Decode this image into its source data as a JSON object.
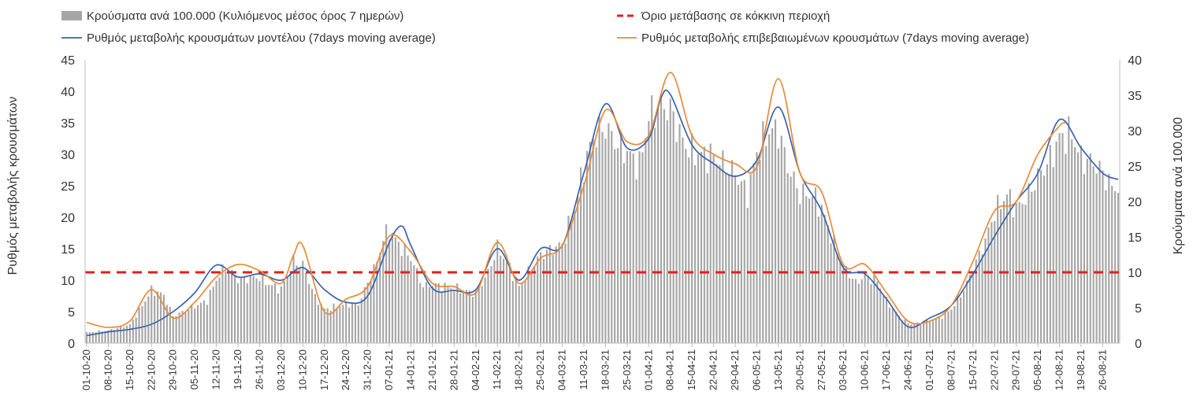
{
  "chart_data": {
    "type": "bar",
    "legend": {
      "placement": "top",
      "items": [
        {
          "label": "Κρούσματα ανά 100.000 (Κυλιόμενος μέσος όρος 7 ημερών)",
          "kind": "bar",
          "color": "#a6a6a6"
        },
        {
          "label": "Όριο μετάβασης σε κόκκινη περιοχή",
          "kind": "dashed",
          "color": "#e02020"
        },
        {
          "label": "Ρυθμός μεταβολής κρουσμάτων μοντέλου (7days moving average)",
          "kind": "line",
          "color": "#3a63b0"
        },
        {
          "label": "Ρυθμός μεταβολής επιβεβαιωμένων κρουσμάτων (7days moving average)",
          "kind": "line",
          "color": "#ea8a35"
        }
      ]
    },
    "ylabel_left": "Ρυθμός μεταβολής κρουσμάτων",
    "ylabel_right": "Κρούσματα ανά 100.000",
    "ylim_left": [
      0,
      45
    ],
    "ylim_right": [
      0,
      40
    ],
    "yticks_left": [
      "0",
      "5",
      "10",
      "15",
      "20",
      "25",
      "30",
      "35",
      "40",
      "45"
    ],
    "yticks_right": [
      "0",
      "5",
      "10",
      "15",
      "20",
      "25",
      "30",
      "35",
      "40"
    ],
    "x_start_date": "2020-10-01",
    "x_end_date": "2021-08-31",
    "xticks": [
      "01-10-20",
      "08-10-20",
      "15-10-20",
      "22-10-20",
      "29-10-20",
      "05-11-20",
      "12-11-20",
      "19-11-20",
      "26-11-20",
      "03-12-20",
      "10-12-20",
      "17-12-20",
      "24-12-20",
      "31-12-20",
      "07-01-21",
      "14-01-21",
      "21-01-21",
      "28-01-21",
      "04-02-21",
      "11-02-21",
      "18-02-21",
      "25-02-21",
      "04-03-21",
      "11-03-21",
      "18-03-21",
      "25-03-21",
      "01-04-21",
      "08-04-21",
      "15-04-21",
      "22-04-21",
      "29-04-21",
      "06-05-21",
      "13-05-21",
      "20-05-21",
      "27-05-21",
      "03-06-21",
      "10-06-21",
      "17-06-21",
      "24-06-21",
      "01-07-21",
      "08-07-21",
      "15-07-21",
      "22-07-21",
      "29-07-21",
      "05-08-21",
      "12-08-21",
      "19-08-21",
      "26-08-21"
    ],
    "threshold": {
      "axis": "right",
      "value": 10,
      "color": "#e02020"
    },
    "grid": false,
    "series": [
      {
        "name": "Κρούσματα ανά 100.000 (Κυλιόμενος μέσος όρος 7 ημερών)",
        "axis": "right",
        "type": "bar",
        "color": "#a6a6a6",
        "x_unit": "date",
        "points": [
          [
            "2020-10-01",
            1.5
          ],
          [
            "2020-10-08",
            1.8
          ],
          [
            "2020-10-15",
            2.6
          ],
          [
            "2020-10-20",
            6.0
          ],
          [
            "2020-10-22",
            7.5
          ],
          [
            "2020-10-26",
            6.8
          ],
          [
            "2020-10-29",
            3.8
          ],
          [
            "2020-11-05",
            5.2
          ],
          [
            "2020-11-09",
            6.0
          ],
          [
            "2020-11-12",
            9.0
          ],
          [
            "2020-11-15",
            10.8
          ],
          [
            "2020-11-19",
            9.0
          ],
          [
            "2020-11-26",
            9.3
          ],
          [
            "2020-11-29",
            8.3
          ],
          [
            "2020-12-03",
            7.6
          ],
          [
            "2020-12-07",
            11.5
          ],
          [
            "2020-12-10",
            11.0
          ],
          [
            "2020-12-14",
            6.5
          ],
          [
            "2020-12-17",
            4.8
          ],
          [
            "2020-12-24",
            5.5
          ],
          [
            "2020-12-28",
            5.5
          ],
          [
            "2021-01-03",
            11.5
          ],
          [
            "2021-01-05",
            14.8
          ],
          [
            "2021-01-07",
            16.0
          ],
          [
            "2021-01-10",
            14.0
          ],
          [
            "2021-01-14",
            12.0
          ],
          [
            "2021-01-18",
            8.0
          ],
          [
            "2021-01-21",
            8.3
          ],
          [
            "2021-01-28",
            7.8
          ],
          [
            "2021-02-04",
            7.0
          ],
          [
            "2021-02-08",
            10.0
          ],
          [
            "2021-02-11",
            13.5
          ],
          [
            "2021-02-14",
            11.5
          ],
          [
            "2021-02-18",
            8.0
          ],
          [
            "2021-02-25",
            12.5
          ],
          [
            "2021-03-04",
            14.0
          ],
          [
            "2021-03-08",
            19.0
          ],
          [
            "2021-03-11",
            25.0
          ],
          [
            "2021-03-14",
            29.0
          ],
          [
            "2021-03-18",
            30.5
          ],
          [
            "2021-03-22",
            28.0
          ],
          [
            "2021-03-25",
            27.0
          ],
          [
            "2021-03-29",
            25.0
          ],
          [
            "2021-04-01",
            32.0
          ],
          [
            "2021-04-05",
            33.5
          ],
          [
            "2021-04-08",
            33.0
          ],
          [
            "2021-04-12",
            28.5
          ],
          [
            "2021-04-15",
            27.0
          ],
          [
            "2021-04-19",
            26.5
          ],
          [
            "2021-04-22",
            26.5
          ],
          [
            "2021-04-26",
            25.0
          ],
          [
            "2021-04-29",
            24.0
          ],
          [
            "2021-05-03",
            21.0
          ],
          [
            "2021-05-06",
            27.0
          ],
          [
            "2021-05-10",
            30.0
          ],
          [
            "2021-05-13",
            30.0
          ],
          [
            "2021-05-16",
            25.0
          ],
          [
            "2021-05-20",
            21.0
          ],
          [
            "2021-05-24",
            21.0
          ],
          [
            "2021-05-27",
            19.0
          ],
          [
            "2021-05-31",
            14.0
          ],
          [
            "2021-06-03",
            11.0
          ],
          [
            "2021-06-07",
            8.5
          ],
          [
            "2021-06-10",
            9.5
          ],
          [
            "2021-06-14",
            8.8
          ],
          [
            "2021-06-17",
            6.0
          ],
          [
            "2021-06-21",
            3.8
          ],
          [
            "2021-06-24",
            2.8
          ],
          [
            "2021-06-28",
            2.8
          ],
          [
            "2021-07-01",
            3.2
          ],
          [
            "2021-07-05",
            3.8
          ],
          [
            "2021-07-08",
            4.8
          ],
          [
            "2021-07-12",
            7.5
          ],
          [
            "2021-07-15",
            10.5
          ],
          [
            "2021-07-19",
            14.5
          ],
          [
            "2021-07-22",
            18.5
          ],
          [
            "2021-07-26",
            21.0
          ],
          [
            "2021-07-29",
            19.0
          ],
          [
            "2021-08-02",
            21.0
          ],
          [
            "2021-08-05",
            23.5
          ],
          [
            "2021-08-09",
            26.0
          ],
          [
            "2021-08-12",
            29.0
          ],
          [
            "2021-08-16",
            29.5
          ],
          [
            "2021-08-19",
            26.0
          ],
          [
            "2021-08-23",
            25.5
          ],
          [
            "2021-08-26",
            24.0
          ],
          [
            "2021-08-29",
            22.0
          ],
          [
            "2021-08-31",
            22.0
          ]
        ]
      },
      {
        "name": "Ρυθμός μεταβολής κρουσμάτων μοντέλου (7days moving average)",
        "axis": "left",
        "type": "line",
        "color": "#3a63b0",
        "x_unit": "date",
        "points": [
          [
            "2020-10-01",
            1.2
          ],
          [
            "2020-10-08",
            1.8
          ],
          [
            "2020-10-15",
            2.2
          ],
          [
            "2020-10-22",
            3.0
          ],
          [
            "2020-10-29",
            5.0
          ],
          [
            "2020-11-05",
            8.0
          ],
          [
            "2020-11-12",
            12.4
          ],
          [
            "2020-11-19",
            10.5
          ],
          [
            "2020-11-26",
            11.0
          ],
          [
            "2020-12-03",
            10.0
          ],
          [
            "2020-12-10",
            12.0
          ],
          [
            "2020-12-17",
            8.5
          ],
          [
            "2020-12-24",
            6.5
          ],
          [
            "2020-12-31",
            7.5
          ],
          [
            "2021-01-07",
            16.0
          ],
          [
            "2021-01-11",
            18.6
          ],
          [
            "2021-01-14",
            15.5
          ],
          [
            "2021-01-21",
            8.7
          ],
          [
            "2021-01-28",
            8.4
          ],
          [
            "2021-02-04",
            8.5
          ],
          [
            "2021-02-11",
            15.0
          ],
          [
            "2021-02-18",
            10.0
          ],
          [
            "2021-02-25",
            15.0
          ],
          [
            "2021-03-04",
            15.5
          ],
          [
            "2021-03-11",
            27.0
          ],
          [
            "2021-03-18",
            38.0
          ],
          [
            "2021-03-25",
            31.0
          ],
          [
            "2021-04-01",
            32.5
          ],
          [
            "2021-04-05",
            39.0
          ],
          [
            "2021-04-08",
            39.5
          ],
          [
            "2021-04-15",
            31.5
          ],
          [
            "2021-04-22",
            28.5
          ],
          [
            "2021-04-29",
            26.5
          ],
          [
            "2021-05-06",
            29.0
          ],
          [
            "2021-05-13",
            37.5
          ],
          [
            "2021-05-20",
            27.0
          ],
          [
            "2021-05-27",
            21.0
          ],
          [
            "2021-06-03",
            12.0
          ],
          [
            "2021-06-10",
            11.0
          ],
          [
            "2021-06-17",
            7.0
          ],
          [
            "2021-06-24",
            2.6
          ],
          [
            "2021-07-01",
            4.0
          ],
          [
            "2021-07-08",
            6.0
          ],
          [
            "2021-07-15",
            11.0
          ],
          [
            "2021-07-22",
            17.0
          ],
          [
            "2021-07-29",
            22.5
          ],
          [
            "2021-08-05",
            27.0
          ],
          [
            "2021-08-12",
            35.5
          ],
          [
            "2021-08-19",
            31.0
          ],
          [
            "2021-08-26",
            27.0
          ],
          [
            "2021-08-31",
            26.0
          ]
        ]
      },
      {
        "name": "Ρυθμός μεταβολής επιβεβαιωμένων κρουσμάτων (7days moving average)",
        "axis": "left",
        "type": "line",
        "color": "#ea8a35",
        "x_unit": "date",
        "points": [
          [
            "2020-10-01",
            3.3
          ],
          [
            "2020-10-08",
            2.5
          ],
          [
            "2020-10-15",
            3.5
          ],
          [
            "2020-10-22",
            8.5
          ],
          [
            "2020-10-29",
            4.0
          ],
          [
            "2020-11-05",
            6.5
          ],
          [
            "2020-11-12",
            10.5
          ],
          [
            "2020-11-19",
            12.5
          ],
          [
            "2020-11-26",
            11.5
          ],
          [
            "2020-12-03",
            9.5
          ],
          [
            "2020-12-07",
            14.0
          ],
          [
            "2020-12-10",
            15.5
          ],
          [
            "2020-12-17",
            5.0
          ],
          [
            "2020-12-24",
            7.0
          ],
          [
            "2020-12-31",
            9.0
          ],
          [
            "2021-01-07",
            17.0
          ],
          [
            "2021-01-14",
            14.5
          ],
          [
            "2021-01-21",
            9.5
          ],
          [
            "2021-01-28",
            9.0
          ],
          [
            "2021-02-04",
            8.0
          ],
          [
            "2021-02-11",
            16.0
          ],
          [
            "2021-02-18",
            9.5
          ],
          [
            "2021-02-25",
            13.5
          ],
          [
            "2021-03-04",
            15.5
          ],
          [
            "2021-03-11",
            25.0
          ],
          [
            "2021-03-18",
            37.0
          ],
          [
            "2021-03-25",
            32.0
          ],
          [
            "2021-04-01",
            33.0
          ],
          [
            "2021-04-08",
            43.0
          ],
          [
            "2021-04-15",
            33.0
          ],
          [
            "2021-04-22",
            30.0
          ],
          [
            "2021-04-29",
            28.5
          ],
          [
            "2021-05-06",
            28.0
          ],
          [
            "2021-05-13",
            42.0
          ],
          [
            "2021-05-20",
            27.0
          ],
          [
            "2021-05-27",
            24.0
          ],
          [
            "2021-06-03",
            12.5
          ],
          [
            "2021-06-10",
            12.5
          ],
          [
            "2021-06-17",
            8.0
          ],
          [
            "2021-06-24",
            3.5
          ],
          [
            "2021-07-01",
            3.5
          ],
          [
            "2021-07-08",
            6.0
          ],
          [
            "2021-07-15",
            13.0
          ],
          [
            "2021-07-22",
            21.0
          ],
          [
            "2021-07-29",
            22.5
          ],
          [
            "2021-08-05",
            30.0
          ],
          [
            "2021-08-12",
            34.5
          ],
          [
            "2021-08-14",
            35.0
          ]
        ]
      }
    ]
  }
}
